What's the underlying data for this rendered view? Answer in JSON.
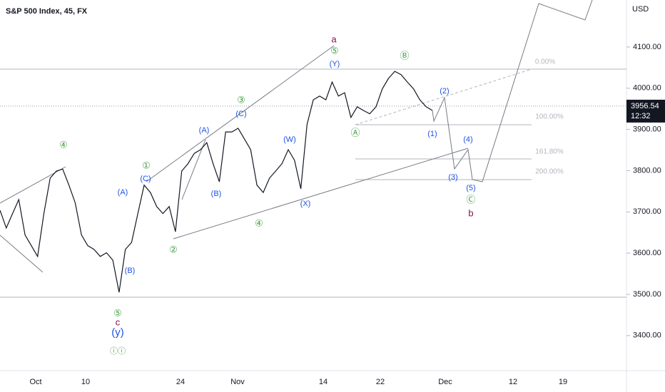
{
  "header": {
    "title": "S&P 500 Index, 45, FX"
  },
  "y_axis": {
    "unit": "USD",
    "ylim": [
      3315,
      4214
    ],
    "ticks": [
      {
        "value": 4100,
        "label": "4100.00"
      },
      {
        "value": 4000,
        "label": "4000.00"
      },
      {
        "value": 3900,
        "label": "3900.00"
      },
      {
        "value": 3800,
        "label": "3800.00"
      },
      {
        "value": 3700,
        "label": "3700.00"
      },
      {
        "value": 3600,
        "label": "3600.00"
      },
      {
        "value": 3500,
        "label": "3500.00"
      },
      {
        "value": 3400,
        "label": "3400.00"
      }
    ]
  },
  "x_axis": {
    "labels": [
      "Oct",
      "10",
      "24",
      "Nov",
      "14",
      "22",
      "Dec",
      "12",
      "19"
    ]
  },
  "price": {
    "color": "#131722",
    "values": [
      3704,
      3661,
      3696,
      3730,
      3644,
      3618,
      3592,
      3696,
      3782,
      3799,
      3804,
      3765,
      3722,
      3644,
      3618,
      3609,
      3592,
      3601,
      3583,
      3505,
      3609,
      3626,
      3696,
      3765,
      3747,
      3713,
      3696,
      3713,
      3652,
      3799,
      3817,
      3842,
      3851,
      3868,
      3817,
      3773,
      3894,
      3894,
      3903,
      3877,
      3851,
      3765,
      3747,
      3782,
      3799,
      3817,
      3851,
      3825,
      3756,
      3912,
      3972,
      3981,
      3972,
      4015,
      3981,
      3989,
      3929,
      3955,
      3946,
      3938,
      3955,
      3998,
      4024,
      4041,
      4033,
      4015,
      3998,
      3972,
      3955,
      3946
    ]
  },
  "last_price": {
    "value": 3956.54,
    "countdown": "12:32"
  },
  "fib_labels": [
    "0.00%",
    "100.00%",
    "161.80%",
    "200.00%"
  ],
  "wave_labels": [
    "a",
    "⑤",
    "(Y)",
    "Ⓑ",
    "(2)",
    "Ⓐ",
    "(1)",
    "(4)",
    "(3)",
    "(5)",
    "Ⓒ",
    "b",
    "③",
    "(C)",
    "(A)",
    "(W)",
    "(B)",
    "(X)",
    "④",
    "②",
    "①",
    "(C)",
    "(A)",
    "(B)",
    "④",
    "⑤",
    "c",
    "(y)",
    "ⓘⓘ"
  ]
}
